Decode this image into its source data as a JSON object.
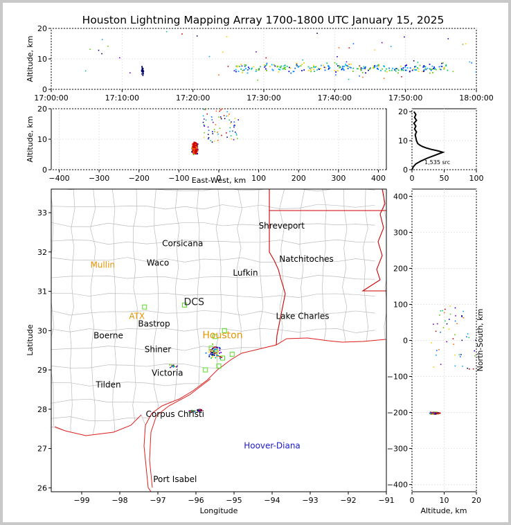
{
  "title": "Houston Lightning Mapping Array 1700-1800 UTC January 15, 2025",
  "colors": {
    "border": "#c8c8c8",
    "state_lines": "#cc0000",
    "coast": "#e02020",
    "counties": "#bbbbbb",
    "network": "#e69500",
    "stations": "#55dd22",
    "highlight_city": "#1a1acc"
  },
  "chart_data": [
    {
      "type": "scatter",
      "name": "time-altitude",
      "ylabel": "Altitude, km",
      "xlim": [
        "17:00:00",
        "18:00:00"
      ],
      "ylim": [
        0,
        20
      ],
      "x_ticks": [
        "17:00:00",
        "17:10:00",
        "17:20:00",
        "17:30:00",
        "17:40:00",
        "17:50:00",
        "18:00:00"
      ],
      "y_ticks": [
        "0",
        "10",
        "20"
      ],
      "grid": true
    },
    {
      "type": "scatter",
      "name": "east-west-altitude",
      "xlabel": "East-West, km",
      "ylabel": "Altitude, km",
      "xlim": [
        -420,
        420
      ],
      "ylim": [
        0,
        20
      ],
      "x_ticks": [
        "−400",
        "−300",
        "−200",
        "−100",
        "0",
        "100",
        "200",
        "300",
        "400"
      ],
      "y_ticks": [
        "0",
        "10",
        "20"
      ],
      "grid": true
    },
    {
      "type": "line",
      "name": "altitude-histogram",
      "xlim": [
        0,
        100
      ],
      "ylim": [
        0,
        21
      ],
      "x_ticks": [
        "0",
        "50",
        "100"
      ],
      "y_ticks": [
        "0",
        "10",
        "20"
      ],
      "source_count_label": "1,535 src",
      "profile": [
        [
          0,
          0
        ],
        [
          2,
          1
        ],
        [
          6,
          2
        ],
        [
          14,
          3
        ],
        [
          24,
          4
        ],
        [
          36,
          5
        ],
        [
          48,
          6
        ],
        [
          40,
          6.5
        ],
        [
          30,
          7
        ],
        [
          22,
          7.5
        ],
        [
          16,
          8
        ],
        [
          12,
          8.5
        ],
        [
          9,
          9
        ],
        [
          7,
          10
        ],
        [
          6,
          11
        ],
        [
          5,
          12
        ],
        [
          7,
          13
        ],
        [
          4,
          14
        ],
        [
          6,
          15
        ],
        [
          3,
          16
        ],
        [
          7,
          17
        ],
        [
          4,
          18
        ],
        [
          6,
          19
        ],
        [
          3,
          20
        ]
      ]
    },
    {
      "type": "map",
      "name": "plan-view",
      "xlabel": "Longitude",
      "ylabel": "Latitude",
      "xlim": [
        -99.8,
        -91
      ],
      "ylim": [
        25.9,
        33.6
      ],
      "x_ticks": [
        "−99",
        "−98",
        "−97",
        "−96",
        "−95",
        "−94",
        "−93",
        "−92",
        "−91"
      ],
      "y_ticks": [
        "26",
        "27",
        "28",
        "29",
        "30",
        "31",
        "32",
        "33"
      ],
      "cities": [
        {
          "label": "Shreveport",
          "lon": -93.75,
          "lat": 32.6
        },
        {
          "label": "Corsicana",
          "lon": -96.35,
          "lat": 32.15
        },
        {
          "label": "Natchitoches",
          "lon": -93.1,
          "lat": 31.75
        },
        {
          "label": "Waco",
          "lon": -97.0,
          "lat": 31.65
        },
        {
          "label": "Lufkin",
          "lon": -94.7,
          "lat": 31.4
        },
        {
          "label": "Bastrop",
          "lon": -97.1,
          "lat": 30.1
        },
        {
          "label": "Lake Charles",
          "lon": -93.2,
          "lat": 30.3
        },
        {
          "label": "Boerne",
          "lon": -98.3,
          "lat": 29.8
        },
        {
          "label": "Shiner",
          "lon": -97.0,
          "lat": 29.45
        },
        {
          "label": "Victoria",
          "lon": -96.75,
          "lat": 28.85
        },
        {
          "label": "Tilden",
          "lon": -98.3,
          "lat": 28.55
        },
        {
          "label": "Corpus Christi",
          "lon": -96.55,
          "lat": 27.8
        },
        {
          "label": "Port Isabel",
          "lon": -96.55,
          "lat": 26.15
        }
      ],
      "network_labels": [
        {
          "label": "Mullin",
          "lon": -98.45,
          "lat": 31.6
        },
        {
          "label": "ATX",
          "lon": -97.55,
          "lat": 30.3
        },
        {
          "label": "DCS",
          "lon": -96.05,
          "lat": 30.65
        },
        {
          "label": "Houston",
          "lon": -95.3,
          "lat": 29.8
        }
      ],
      "highlight_label": {
        "label": "Hoover-Diana",
        "lon": -94.0,
        "lat": 27.0
      }
    },
    {
      "type": "scatter",
      "name": "altitude-north-south",
      "xlabel": "Altitude, km",
      "ylabel": "North-South, km",
      "xlim": [
        0,
        20
      ],
      "ylim": [
        -420,
        420
      ],
      "x_ticks": [
        "0",
        "10",
        "20"
      ],
      "y_ticks": [
        "−400",
        "−300",
        "−200",
        "−100",
        "0",
        "100",
        "200",
        "300",
        "400"
      ],
      "grid": true
    }
  ]
}
